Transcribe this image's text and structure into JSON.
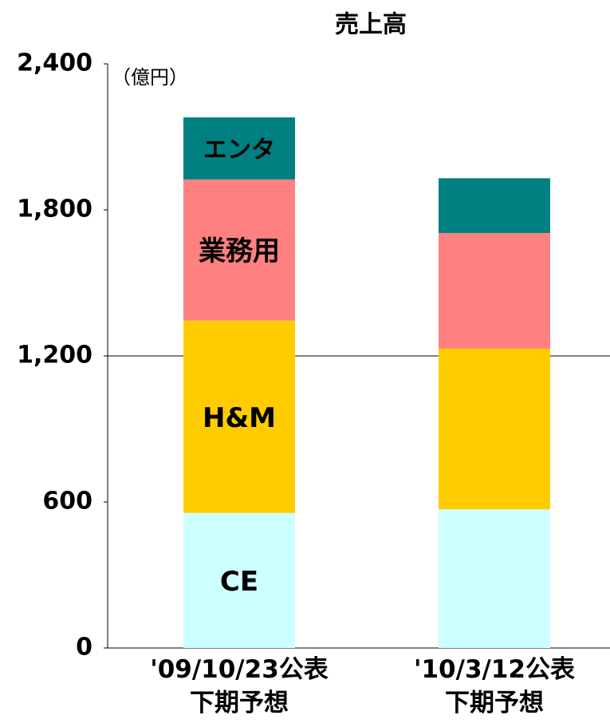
{
  "chart_data": {
    "type": "stacked_bar",
    "title": "売上高",
    "y_unit": "（億円）",
    "categories": [
      "'09/10/23公表\n下期予想",
      "'10/3/12公表\n下期予想"
    ],
    "series": [
      {
        "name": "CE",
        "color": "#ccffff",
        "values": [
          555,
          570
        ]
      },
      {
        "name": "H&M",
        "color": "#ffcc00",
        "values": [
          790,
          660
        ]
      },
      {
        "name": "業務用",
        "color": "#ff8080",
        "values": [
          580,
          475
        ]
      },
      {
        "name": "エンタ",
        "color": "#008080",
        "values": [
          255,
          225
        ]
      }
    ],
    "ylim": [
      0,
      2400
    ],
    "yticks": [
      0,
      600,
      {
        "value": 1200,
        "label": "1,200"
      },
      {
        "value": 1800,
        "label": "1,800"
      },
      {
        "value": 2400,
        "label": "2,400"
      }
    ],
    "gridline_at": 1200
  }
}
